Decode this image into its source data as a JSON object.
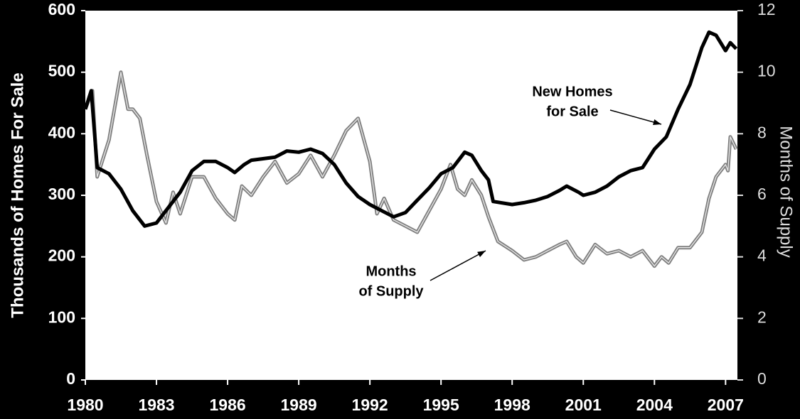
{
  "chart_data": {
    "type": "line",
    "y_label": "Thousands of Homes For Sale",
    "y2_label": "Months of Supply",
    "xlim": [
      1980,
      2007.5
    ],
    "xticks": [
      1980,
      1983,
      1986,
      1989,
      1992,
      1995,
      1998,
      2001,
      2004,
      2007
    ],
    "ylim": [
      0,
      600
    ],
    "yticks": [
      0,
      100,
      200,
      300,
      400,
      500,
      600
    ],
    "y2lim": [
      0,
      12
    ],
    "y2ticks": [
      0,
      2,
      4,
      6,
      8,
      10,
      12
    ],
    "annotations": [
      {
        "lines": [
          "New Homes",
          "for Sale"
        ],
        "series": 0
      },
      {
        "lines": [
          "Months",
          "of Supply"
        ],
        "series": 1
      }
    ],
    "series": [
      {
        "name": "New Homes for Sale",
        "color": "#000000",
        "x": [
          1980.0,
          1980.25,
          1980.5,
          1981,
          1981.5,
          1982,
          1982.5,
          1983,
          1983.5,
          1984,
          1984.5,
          1985,
          1985.5,
          1986,
          1986.3,
          1986.7,
          1987,
          1988,
          1988.5,
          1989,
          1989.5,
          1990,
          1990.5,
          1991,
          1991.5,
          1992,
          1992.5,
          1993,
          1993.5,
          1994,
          1994.5,
          1995,
          1995.5,
          1996,
          1996.3,
          1996.7,
          1997,
          1997.2,
          1998,
          1998.5,
          1999,
          1999.5,
          2000,
          2000.3,
          2000.8,
          2001,
          2001.5,
          2002,
          2002.5,
          2003,
          2003.5,
          2004,
          2004.5,
          2005,
          2005.5,
          2006,
          2006.3,
          2006.6,
          2007,
          2007.2,
          2007.45
        ],
        "values": [
          440,
          470,
          345,
          335,
          310,
          275,
          250,
          255,
          280,
          305,
          340,
          355,
          355,
          345,
          337,
          350,
          357,
          362,
          372,
          370,
          375,
          368,
          350,
          320,
          298,
          285,
          275,
          265,
          272,
          292,
          312,
          335,
          345,
          370,
          365,
          340,
          325,
          290,
          285,
          288,
          292,
          298,
          308,
          315,
          305,
          300,
          305,
          315,
          330,
          340,
          345,
          375,
          395,
          440,
          480,
          540,
          565,
          560,
          535,
          548,
          538
        ]
      },
      {
        "name": "Months of Supply",
        "color": "#808080",
        "axis": "y2",
        "x": [
          1980.0,
          1980.3,
          1980.5,
          1981,
          1981.5,
          1981.8,
          1982,
          1982.3,
          1982.6,
          1983,
          1983.4,
          1983.7,
          1984,
          1984.5,
          1985,
          1985.5,
          1986,
          1986.3,
          1986.6,
          1987,
          1987.5,
          1988,
          1988.5,
          1989,
          1989.5,
          1990,
          1990.5,
          1991,
          1991.5,
          1992,
          1992.3,
          1992.6,
          1993,
          1993.5,
          1994,
          1994.5,
          1995,
          1995.4,
          1995.7,
          1996,
          1996.3,
          1996.7,
          1997,
          1997.4,
          1998,
          1998.5,
          1999,
          1999.5,
          2000,
          2000.3,
          2000.7,
          2001,
          2001.5,
          2002,
          2002.5,
          2003,
          2003.5,
          2004,
          2004.3,
          2004.6,
          2005,
          2005.5,
          2006,
          2006.3,
          2006.6,
          2007,
          2007.1,
          2007.2,
          2007.45
        ],
        "values": [
          8.8,
          9.4,
          6.6,
          7.8,
          10,
          8.8,
          8.8,
          8.5,
          7.3,
          5.8,
          5.1,
          6.1,
          5.4,
          6.6,
          6.6,
          5.9,
          5.4,
          5.2,
          6.3,
          6.0,
          6.6,
          7.1,
          6.4,
          6.7,
          7.3,
          6.6,
          7.3,
          8.1,
          8.5,
          7.1,
          5.4,
          5.9,
          5.2,
          5.0,
          4.8,
          5.5,
          6.2,
          7.0,
          6.2,
          6.0,
          6.5,
          6.0,
          5.3,
          4.5,
          4.2,
          3.9,
          4.0,
          4.2,
          4.4,
          4.5,
          4.0,
          3.8,
          4.4,
          4.1,
          4.2,
          4.0,
          4.2,
          3.7,
          4.0,
          3.8,
          4.3,
          4.3,
          4.8,
          5.9,
          6.6,
          7.0,
          6.8,
          7.9,
          7.5
        ]
      }
    ]
  }
}
